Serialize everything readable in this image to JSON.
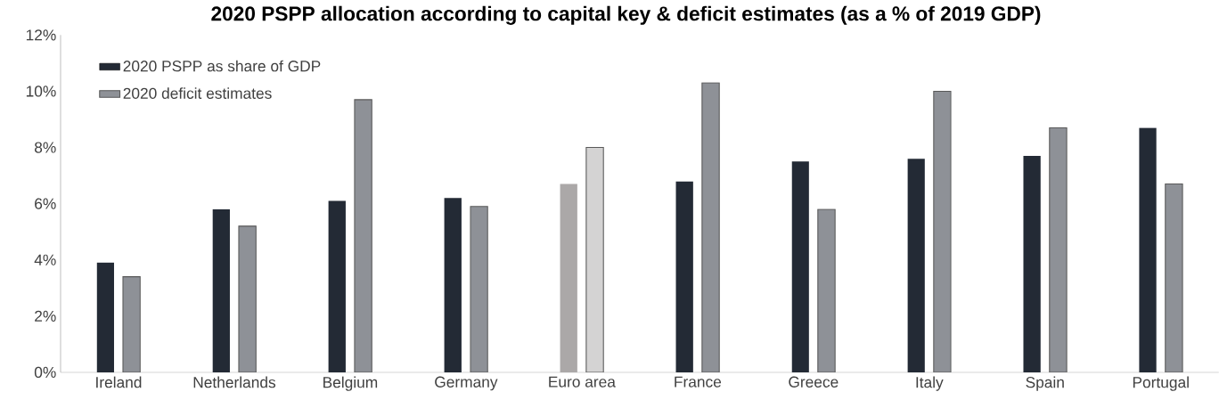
{
  "chart_data": {
    "type": "bar",
    "title": "2020 PSPP allocation according to capital key & deficit estimates (as a % of 2019 GDP)",
    "categories": [
      "Ireland",
      "Netherlands",
      "Belgium",
      "Germany",
      "Euro area",
      "France",
      "Greece",
      "Italy",
      "Spain",
      "Portugal"
    ],
    "series": [
      {
        "name": "2020 PSPP as share of GDP",
        "color": "#232a35",
        "colors": [
          "#232a35",
          "#232a35",
          "#232a35",
          "#232a35",
          "#aba8a8",
          "#232a35",
          "#232a35",
          "#232a35",
          "#232a35",
          "#232a35"
        ],
        "values": [
          3.9,
          5.8,
          6.1,
          6.2,
          6.7,
          6.8,
          7.5,
          7.6,
          7.7,
          8.7
        ]
      },
      {
        "name": "2020 deficit estimates",
        "color": "#8e9197",
        "colors": [
          "#8e9197",
          "#8e9197",
          "#8e9197",
          "#8e9197",
          "#d4d3d3",
          "#8e9197",
          "#8e9197",
          "#8e9197",
          "#8e9197",
          "#8e9197"
        ],
        "values": [
          3.4,
          5.2,
          9.7,
          5.9,
          8.0,
          10.3,
          5.8,
          10.0,
          8.7,
          6.7
        ]
      }
    ],
    "ylim": [
      0,
      12
    ],
    "yticks": [
      {
        "value": 0,
        "label": "0%"
      },
      {
        "value": 2,
        "label": "2%"
      },
      {
        "value": 4,
        "label": "4%"
      },
      {
        "value": 6,
        "label": "6%"
      },
      {
        "value": 8,
        "label": "8%"
      },
      {
        "value": 10,
        "label": "10%"
      },
      {
        "value": 12,
        "label": "12%"
      }
    ],
    "grid": false,
    "legend": "top left"
  }
}
